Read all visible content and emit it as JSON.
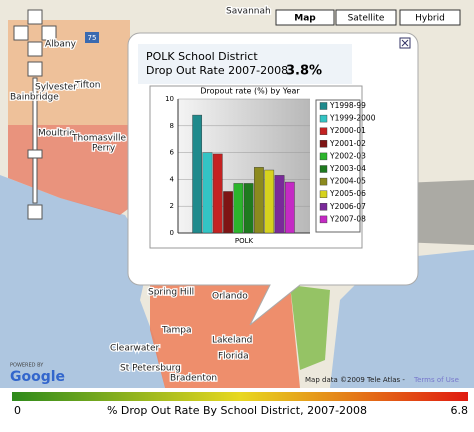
{
  "map": {
    "buttons": [
      "Map",
      "Satellite",
      "Hybrid"
    ],
    "labels": [
      "Savannah",
      "Albany",
      "Tifton",
      "Sylvester",
      "Moultrie",
      "Bainbridge",
      "Thomasville",
      "Perry",
      "Spring Hill",
      "Orlando",
      "Tampa",
      "Lakeland",
      "Florida",
      "Clearwater",
      "St Petersburg",
      "Bradenton"
    ],
    "road": "75",
    "powered_by": "POWERED BY",
    "logo": "Google",
    "attribution": "Map data ©2009 Tele Atlas -",
    "terms": "Terms of Use"
  },
  "popup": {
    "title": "POLK School District",
    "subtitle": "Drop Out Rate 2007-2008:",
    "rate": "3.8%"
  },
  "chart_data": {
    "type": "bar",
    "title": "Dropout rate (%) by Year",
    "categories": [
      "POLK"
    ],
    "ylim": [
      0,
      10
    ],
    "yticks": [
      0,
      2,
      4,
      6,
      8,
      10
    ],
    "grid": true,
    "series": [
      {
        "name": "Y1998-99",
        "color": "#1f8a8c",
        "values": [
          8.8
        ]
      },
      {
        "name": "Y1999-2000",
        "color": "#33c4c4",
        "values": [
          6.0
        ]
      },
      {
        "name": "Y2000-01",
        "color": "#c42222",
        "values": [
          5.9
        ]
      },
      {
        "name": "Y2001-02",
        "color": "#7e1414",
        "values": [
          3.1
        ]
      },
      {
        "name": "Y2002-03",
        "color": "#2cb52c",
        "values": [
          3.7
        ]
      },
      {
        "name": "Y2003-04",
        "color": "#1f7a1f",
        "values": [
          3.7
        ]
      },
      {
        "name": "Y2004-05",
        "color": "#8c8a1e",
        "values": [
          4.9
        ]
      },
      {
        "name": "Y2005-06",
        "color": "#d6d21e",
        "values": [
          4.7
        ]
      },
      {
        "name": "Y2006-07",
        "color": "#7a2a9a",
        "values": [
          4.3
        ]
      },
      {
        "name": "Y2007-08",
        "color": "#c42ac4",
        "values": [
          3.8
        ]
      }
    ]
  },
  "colorbar": {
    "min": "0",
    "title": "% Drop Out Rate By School District, 2007-2008",
    "max": "6.8"
  }
}
